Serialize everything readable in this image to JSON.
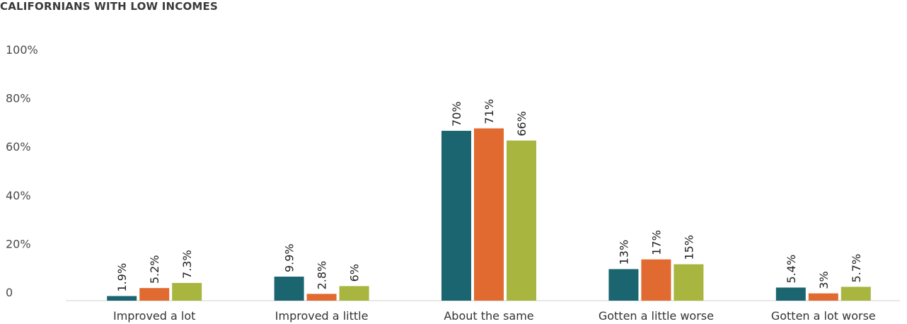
{
  "title": "CALIFORNIANS WITH LOW INCOMES",
  "chart_data": {
    "type": "bar",
    "title": "CALIFORNIANS WITH LOW INCOMES",
    "xlabel": "",
    "ylabel": "",
    "ylim": [
      0,
      100
    ],
    "yticks": [
      {
        "value": 0,
        "label": "0"
      },
      {
        "value": 20,
        "label": "20%"
      },
      {
        "value": 40,
        "label": "40%"
      },
      {
        "value": 60,
        "label": "60%"
      },
      {
        "value": 80,
        "label": "80%"
      },
      {
        "value": 100,
        "label": "100%"
      }
    ],
    "grid": false,
    "categories": [
      "Improved a lot",
      "Improved a little",
      "About the same",
      "Gotten a little worse",
      "Gotten a lot worse"
    ],
    "series": [
      {
        "color": "#1b6570",
        "values": [
          1.9,
          9.9,
          70,
          13,
          5.4
        ],
        "labels": [
          "1.9%",
          "9.9%",
          "70%",
          "13%",
          "5.4%"
        ]
      },
      {
        "color": "#e06a30",
        "values": [
          5.2,
          2.8,
          71,
          17,
          3
        ],
        "labels": [
          "5.2%",
          "2.8%",
          "71%",
          "17%",
          "3%"
        ]
      },
      {
        "color": "#a8b640",
        "values": [
          7.3,
          6,
          66,
          15,
          5.7
        ],
        "labels": [
          "7.3%",
          "6%",
          "66%",
          "15%",
          "5.7%"
        ]
      }
    ]
  }
}
